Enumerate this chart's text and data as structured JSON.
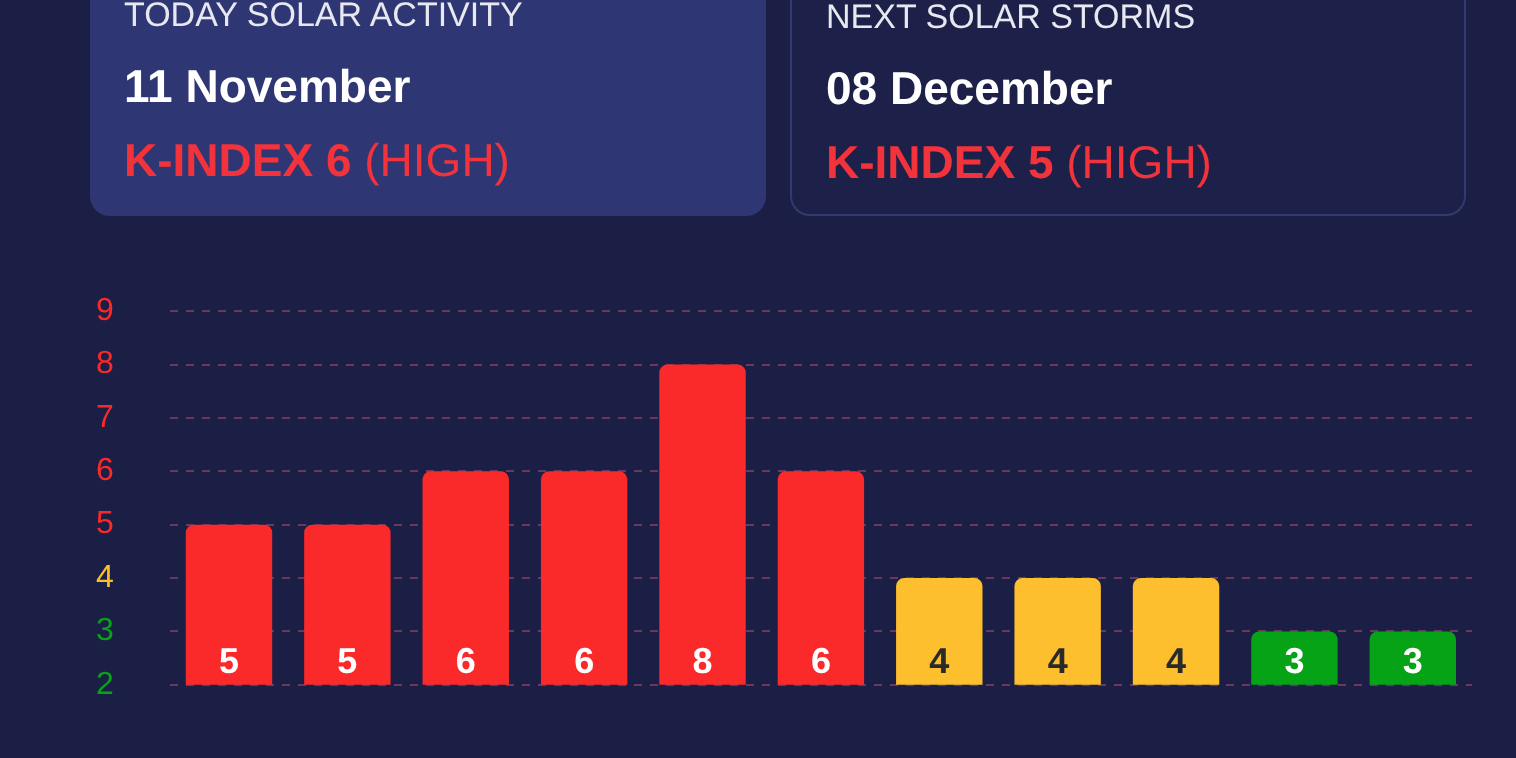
{
  "chart_data": {
    "type": "bar",
    "annotations": [
      "TODAY SOLAR ACTIVITY",
      "11 November",
      "K-INDEX 6",
      "(HIGH)",
      "NEXT SOLAR STORMS",
      "08 December",
      "K-INDEX 5",
      "(HIGH)"
    ],
    "categories": [
      null,
      null,
      null,
      null,
      null,
      null,
      null,
      null,
      null,
      null,
      null
    ],
    "values": [
      5,
      5,
      6,
      6,
      8,
      6,
      4,
      4,
      4,
      3,
      3
    ],
    "colors": [
      "#fb2a2a",
      "#fb2a2a",
      "#fb2a2a",
      "#fb2a2a",
      "#fb2a2a",
      "#fb2a2a",
      "#fdbf2d",
      "#fdbf2d",
      "#fdbf2d",
      "#06a316",
      "#06a316"
    ],
    "ylim": [
      2,
      9
    ],
    "yticks": [
      2,
      3,
      4,
      5,
      6,
      7,
      8,
      9
    ],
    "grid": "y",
    "data_labels": true,
    "legend": false,
    "tick_labels": "y"
  }
}
